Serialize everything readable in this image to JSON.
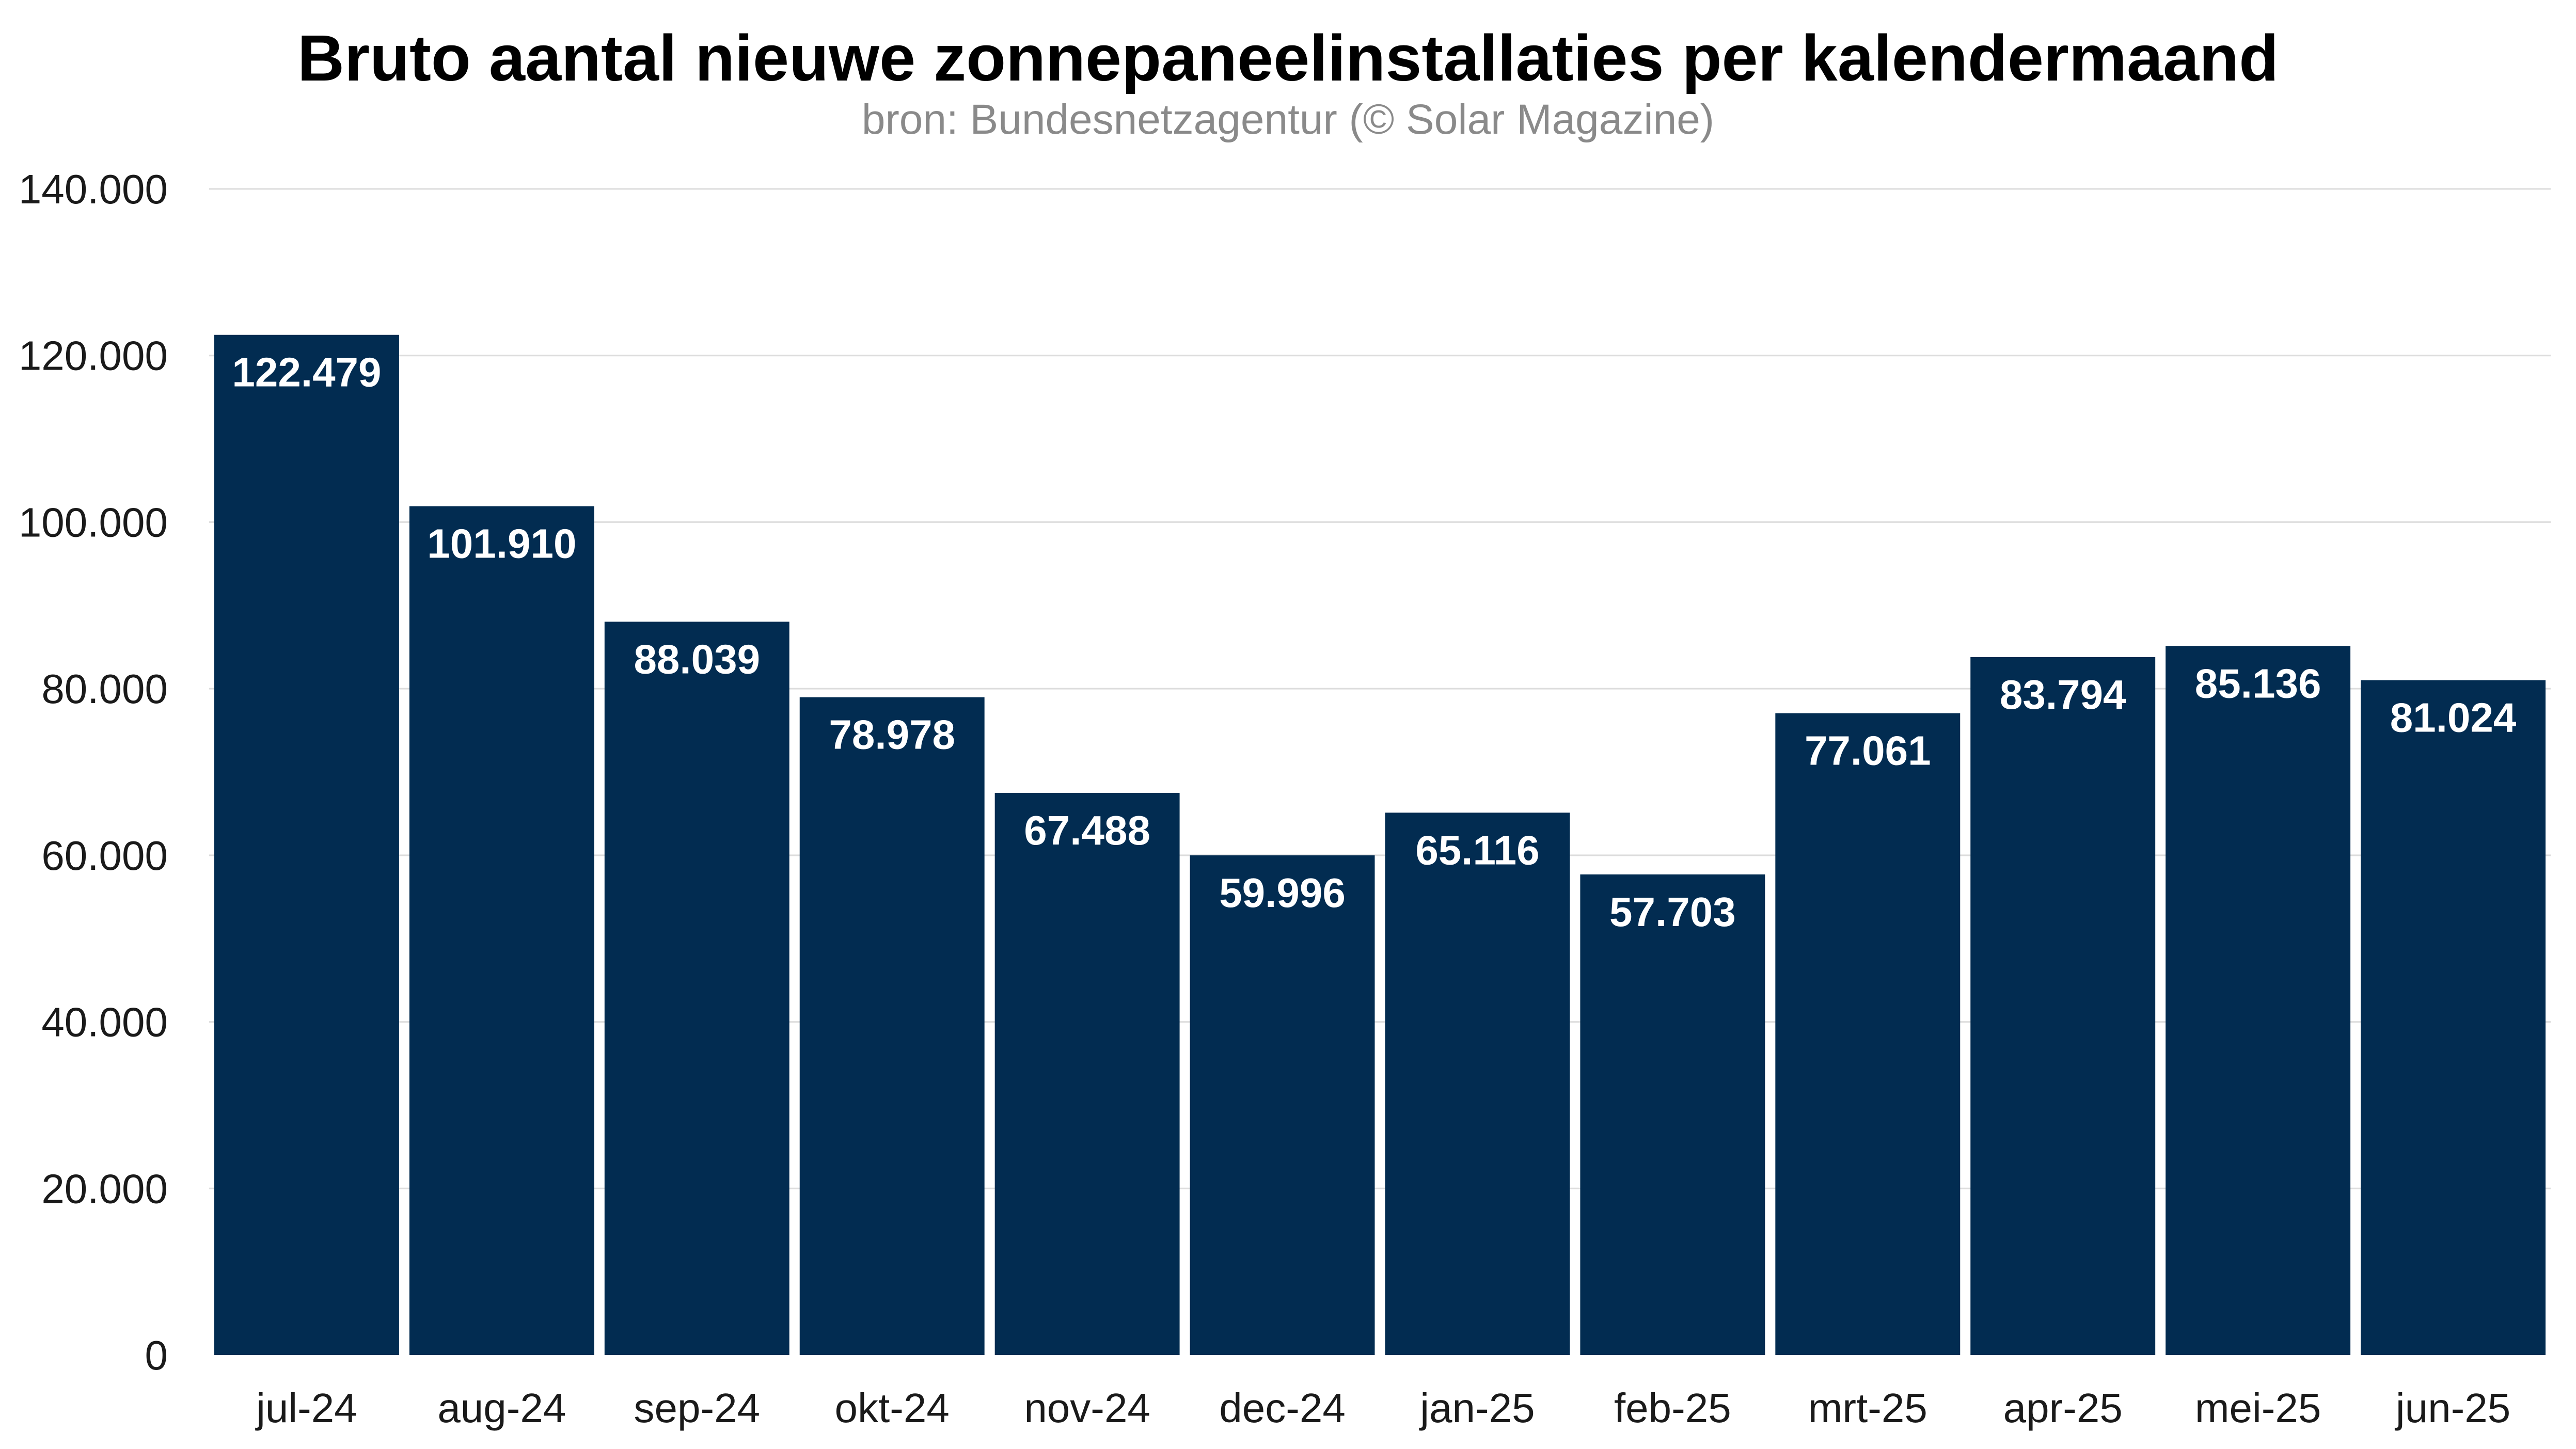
{
  "chart_data": {
    "type": "bar",
    "title": "Bruto aantal nieuwe zonnepaneelinstallaties per kalendermaand",
    "subtitle": "bron: Bundesnetzagentur (© Solar Magazine)",
    "xlabel": "",
    "ylabel": "",
    "categories": [
      "jul-24",
      "aug-24",
      "sep-24",
      "okt-24",
      "nov-24",
      "dec-24",
      "jan-25",
      "feb-25",
      "mrt-25",
      "apr-25",
      "mei-25",
      "jun-25"
    ],
    "values": [
      122479,
      101910,
      88039,
      78978,
      67488,
      59996,
      65116,
      57703,
      77061,
      83794,
      85136,
      81024
    ],
    "value_labels": [
      "122.479",
      "101.910",
      "88.039",
      "78.978",
      "67.488",
      "59.996",
      "65.116",
      "57.703",
      "77.061",
      "83.794",
      "85.136",
      "81.024"
    ],
    "ylim": [
      0,
      140000
    ],
    "yticks": [
      0,
      20000,
      40000,
      60000,
      80000,
      100000,
      120000,
      140000
    ],
    "ytick_labels": [
      "0",
      "20.000",
      "40.000",
      "60.000",
      "80.000",
      "100.000",
      "120.000",
      "140.000"
    ],
    "grid": true,
    "legend": "none",
    "colors": {
      "bar": "#022c51",
      "grid": "#dddddd",
      "value_label": "#ffffff",
      "axis_text": "#1a1a1a",
      "subtitle": "#8a8a8a"
    }
  }
}
